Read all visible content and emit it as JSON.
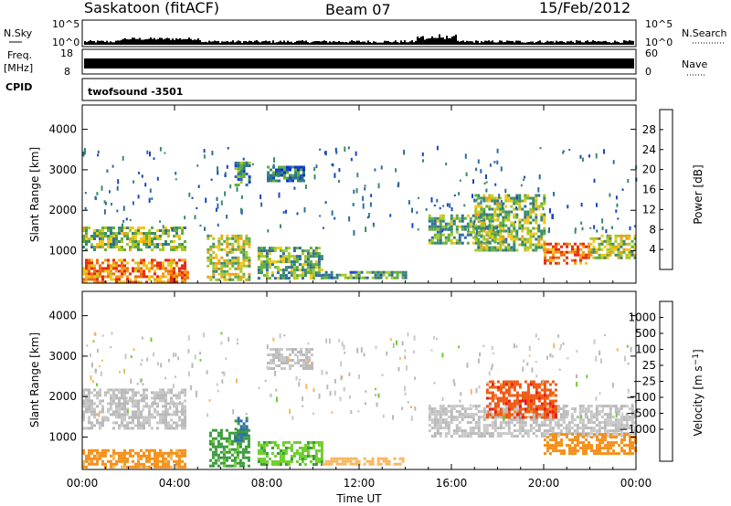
{
  "header": {
    "station": "Saskatoon (fitACF)",
    "beam": "Beam 07",
    "date": "15/Feb/2012"
  },
  "strips": {
    "nsky_label": "N.Sky",
    "nsky_ticks": [
      "10^5",
      "10^0"
    ],
    "nsearch_label": "N.Search",
    "nsearch_ticks": [
      "10^5",
      "10^0"
    ],
    "freq_label": "Freq.",
    "freq_unit": "[MHz]",
    "freq_ticks": [
      "18",
      "8"
    ],
    "nave_label": "Nave",
    "nave_ticks": [
      "60",
      "0"
    ],
    "cpid_label": "CPID",
    "cpid_value": "twofsound  -3501"
  },
  "colors": {
    "power": [
      "#0a2fd8",
      "#1a45c0",
      "#2e6d9e",
      "#3a8a6a",
      "#5fae3e",
      "#a8c82a",
      "#f2c61a",
      "#f59a18",
      "#f06a12",
      "#e82a10"
    ],
    "velocity": [
      "#e81a12",
      "#f05a14",
      "#f5901a",
      "#f6b760",
      "#c8c8c8",
      "#b9b9b9",
      "#6fce2e",
      "#3a9a3a",
      "#2f6db0",
      "#2a3fb8"
    ]
  },
  "chart_data": [
    {
      "type": "heatmap",
      "title": "",
      "xlabel": "",
      "ylabel": "Slant Range [km]",
      "xlim": [
        "00:00",
        "24:00"
      ],
      "ylim": [
        200,
        4600
      ],
      "x_ticks": [
        "00:00",
        "04:00",
        "08:00",
        "12:00",
        "16:00",
        "20:00",
        "00:00"
      ],
      "y_ticks": [
        1000,
        2000,
        3000,
        4000
      ],
      "colorbar": {
        "label": "Power [dB]",
        "range": [
          0,
          32
        ],
        "ticks": [
          4,
          8,
          12,
          16,
          20,
          24,
          28
        ]
      },
      "regions": [
        {
          "t_start": 0.0,
          "t_end": 4.5,
          "range_low": 1000,
          "range_high": 1600,
          "level": 16
        },
        {
          "t_start": 0.0,
          "t_end": 4.5,
          "range_low": 250,
          "range_high": 800,
          "level": 26
        },
        {
          "t_start": 3.8,
          "t_end": 4.6,
          "range_low": 300,
          "range_high": 500,
          "level": 30
        },
        {
          "t_start": 5.4,
          "t_end": 7.2,
          "range_low": 300,
          "range_high": 1400,
          "level": 18
        },
        {
          "t_start": 6.6,
          "t_end": 7.2,
          "range_low": 2600,
          "range_high": 3200,
          "level": 12
        },
        {
          "t_start": 7.6,
          "t_end": 10.4,
          "range_low": 300,
          "range_high": 1100,
          "level": 14
        },
        {
          "t_start": 8.0,
          "t_end": 9.6,
          "range_low": 2700,
          "range_high": 3100,
          "level": 8
        },
        {
          "t_start": 10.4,
          "t_end": 14.0,
          "range_low": 300,
          "range_high": 500,
          "level": 12
        },
        {
          "t_start": 15.0,
          "t_end": 18.0,
          "range_low": 1200,
          "range_high": 1900,
          "level": 14
        },
        {
          "t_start": 17.0,
          "t_end": 20.0,
          "range_low": 1000,
          "range_high": 2400,
          "level": 16
        },
        {
          "t_start": 20.0,
          "t_end": 22.0,
          "range_low": 700,
          "range_high": 1200,
          "level": 28
        },
        {
          "t_start": 22.0,
          "t_end": 24.0,
          "range_low": 800,
          "range_high": 1400,
          "level": 18
        }
      ]
    },
    {
      "type": "heatmap",
      "title": "",
      "xlabel": "Time UT",
      "ylabel": "Slant Range [km]",
      "xlim": [
        "00:00",
        "24:00"
      ],
      "ylim": [
        200,
        4600
      ],
      "x_ticks": [
        "00:00",
        "04:00",
        "08:00",
        "12:00",
        "16:00",
        "20:00",
        "00:00"
      ],
      "y_ticks": [
        1000,
        2000,
        3000,
        4000
      ],
      "colorbar": {
        "label": "Velocity [m s-1]",
        "ticks": [
          1000,
          500,
          100,
          25,
          -25,
          -100,
          -500,
          -1000
        ],
        "tick_labels": [
          "1000",
          "500",
          "100",
          "25",
          "−25",
          "−100",
          "−500",
          "−1000"
        ]
      },
      "regions": [
        {
          "t_start": 0.0,
          "t_end": 4.5,
          "range_low": 1200,
          "range_high": 2200,
          "level": 0
        },
        {
          "t_start": 0.0,
          "t_end": 4.5,
          "range_low": 250,
          "range_high": 700,
          "level": -150
        },
        {
          "t_start": 5.5,
          "t_end": 7.2,
          "range_low": 300,
          "range_high": 1200,
          "level": 150
        },
        {
          "t_start": 6.6,
          "t_end": 7.1,
          "range_low": 900,
          "range_high": 1500,
          "level": 600
        },
        {
          "t_start": 7.6,
          "t_end": 10.4,
          "range_low": 300,
          "range_high": 900,
          "level": 80
        },
        {
          "t_start": 8.0,
          "t_end": 10.0,
          "range_low": 2700,
          "range_high": 3200,
          "level": 0
        },
        {
          "t_start": 10.4,
          "t_end": 14.0,
          "range_low": 300,
          "range_high": 500,
          "level": -60
        },
        {
          "t_start": 15.0,
          "t_end": 24.0,
          "range_low": 1000,
          "range_high": 1800,
          "level": 0
        },
        {
          "t_start": 17.5,
          "t_end": 20.5,
          "range_low": 1500,
          "range_high": 2400,
          "level": -800
        },
        {
          "t_start": 20.0,
          "t_end": 24.0,
          "range_low": 600,
          "range_high": 1100,
          "level": -300
        }
      ]
    }
  ]
}
